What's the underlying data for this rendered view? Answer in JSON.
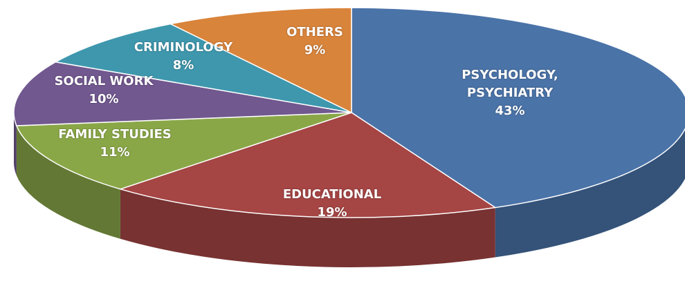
{
  "chart_data": {
    "type": "pie",
    "categories": [
      "PSYCHOLOGY, PSYCHIATRY",
      "EDUCATIONAL",
      "FAMILY STUDIES",
      "SOCIAL WORK",
      "CRIMINOLOGY",
      "OTHERS"
    ],
    "values": [
      43,
      19,
      11,
      10,
      8,
      9
    ],
    "value_labels": [
      "43%",
      "19%",
      "11%",
      "10%",
      "8%",
      "9%"
    ],
    "colors": [
      "#4a73a8",
      "#a54544",
      "#8aa748",
      "#71588f",
      "#3e97ad",
      "#d9843b"
    ]
  }
}
